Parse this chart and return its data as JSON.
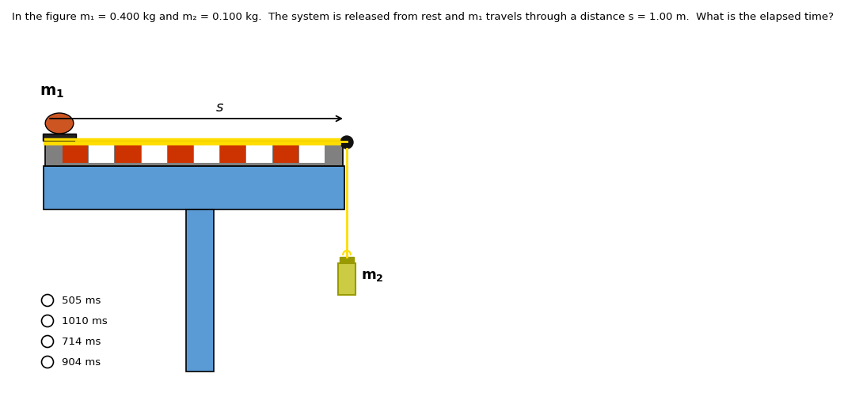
{
  "title": "In the figure m₁ = 0.400 kg and m₂ = 0.100 kg.  The system is released from rest and m₁ travels through a distance s = 1.00 m.  What is the elapsed time?",
  "choices": [
    "505 ms",
    "1010 ms",
    "714 ms",
    "904 ms"
  ],
  "bg_color": "#ffffff",
  "table_color": "#5b9bd5",
  "track_color": "#808080",
  "track_stripe_orange": "#cc3300",
  "track_stripe_white": "#ffffff",
  "track_yellow": "#ffdd00",
  "m1_body_color": "#cc5522",
  "m1_cap_color": "#222222",
  "m2_color": "#cccc44",
  "m2_dark": "#999900",
  "string_color": "#ddcc00",
  "pulley_color": "#111111"
}
